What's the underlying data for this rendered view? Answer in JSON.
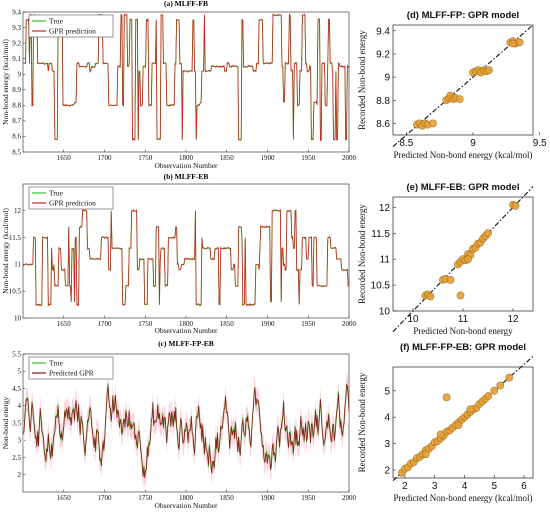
{
  "chart_data": [
    {
      "type": "line",
      "title": "(a) MLFF-FB",
      "xlabel": "Observation Number",
      "ylabel": "Non-bond energy (kcal/mol)",
      "xlim": [
        1600,
        2000
      ],
      "ylim": [
        8.5,
        9.4
      ],
      "xticks": [
        1650,
        1700,
        1750,
        1800,
        1850,
        1900,
        1950,
        2000
      ],
      "yticks": [
        8.5,
        8.6,
        8.7,
        8.8,
        8.9,
        9.0,
        9.1,
        9.2,
        9.3,
        9.4
      ],
      "legend": "top-left",
      "series": [
        {
          "name": "True",
          "color": "#2ecc2e"
        },
        {
          "name": "GPR prediction",
          "color": "#cc2020"
        }
      ],
      "levels": [
        8.58,
        8.8,
        8.82,
        9.02,
        9.05,
        9.07,
        9.35,
        9.38
      ]
    },
    {
      "type": "line",
      "title": "(b) MLFF-EB",
      "xlabel": "Observation Number",
      "ylabel": "Non-bond energy (kcal/mol)",
      "xlim": [
        1600,
        2000
      ],
      "ylim": [
        10,
        12.5
      ],
      "xticks": [
        1650,
        1700,
        1750,
        1800,
        1850,
        1900,
        1950,
        2000
      ],
      "yticks": [
        10,
        10.5,
        11,
        11.5,
        12
      ],
      "legend": "top-left",
      "series": [
        {
          "name": "True",
          "color": "#2ecc2e"
        },
        {
          "name": "GPR prediction",
          "color": "#cc2020"
        }
      ],
      "levels": [
        10.25,
        10.3,
        10.6,
        10.9,
        11.0,
        11.1,
        11.3,
        11.5,
        11.7,
        12.0
      ]
    },
    {
      "type": "line",
      "title": "(c) MLFF-FP-EB",
      "xlabel": "Observation Number",
      "ylabel": "Non-bond energy",
      "xlim": [
        1600,
        2000
      ],
      "ylim": [
        1.5,
        5.5
      ],
      "xticks": [
        1650,
        1700,
        1750,
        1800,
        1850,
        1900,
        1950,
        2000
      ],
      "yticks": [
        2,
        2.5,
        3,
        3.5,
        4,
        4.5,
        5,
        5.5
      ],
      "legend": "top-left",
      "series": [
        {
          "name": "True",
          "color": "#2ecc2e"
        },
        {
          "name": "Predicted GPR",
          "color": "#8b1a1a"
        }
      ]
    },
    {
      "type": "scatter",
      "title": "(d)  MLFF-FP: GPR model",
      "xlabel": "Predicted Non-bond energy (kcal/mol)",
      "ylabel": "Recorded Non-bond energy",
      "xlim": [
        8.4,
        9.45
      ],
      "ylim": [
        8.5,
        9.45
      ],
      "xticks": [
        8.5,
        9,
        9.5
      ],
      "yticks": [
        8.6,
        8.8,
        9,
        9.2,
        9.4
      ],
      "points": [
        [
          8.58,
          8.59
        ],
        [
          8.6,
          8.6
        ],
        [
          8.62,
          8.58
        ],
        [
          8.64,
          8.6
        ],
        [
          8.66,
          8.59
        ],
        [
          8.7,
          8.6
        ],
        [
          8.8,
          8.8
        ],
        [
          8.82,
          8.82
        ],
        [
          8.83,
          8.84
        ],
        [
          8.85,
          8.81
        ],
        [
          8.87,
          8.82
        ],
        [
          8.9,
          8.81
        ],
        [
          9.0,
          9.04
        ],
        [
          9.02,
          9.05
        ],
        [
          9.04,
          9.06
        ],
        [
          9.06,
          9.04
        ],
        [
          9.08,
          9.06
        ],
        [
          9.1,
          9.05
        ],
        [
          9.12,
          9.06
        ],
        [
          9.28,
          9.3
        ],
        [
          9.3,
          9.31
        ],
        [
          9.32,
          9.29
        ],
        [
          9.35,
          9.3
        ],
        [
          9.3,
          9.29
        ]
      ]
    },
    {
      "type": "scatter",
      "title": "(e) MLFF-EB: GPR model",
      "xlabel": "Predicted Non-bond energy",
      "ylabel": "Recorded Non-bond energy",
      "xlim": [
        9.6,
        12.4
      ],
      "ylim": [
        10,
        12.2
      ],
      "xticks": [
        10,
        11,
        12
      ],
      "yticks": [
        10,
        10.5,
        11,
        11.5,
        12
      ],
      "points": [
        [
          10.25,
          10.3
        ],
        [
          10.3,
          10.32
        ],
        [
          10.35,
          10.28
        ],
        [
          10.6,
          10.6
        ],
        [
          10.65,
          10.62
        ],
        [
          10.75,
          10.6
        ],
        [
          10.9,
          10.9
        ],
        [
          10.95,
          10.95
        ],
        [
          11.0,
          11.0
        ],
        [
          11.05,
          10.98
        ],
        [
          11.1,
          11.1
        ],
        [
          11.15,
          11.08
        ],
        [
          11.2,
          11.2
        ],
        [
          11.25,
          11.22
        ],
        [
          11.3,
          11.3
        ],
        [
          11.35,
          11.32
        ],
        [
          11.4,
          11.4
        ],
        [
          11.45,
          11.45
        ],
        [
          11.5,
          11.5
        ],
        [
          11.1,
          11.0
        ],
        [
          10.95,
          10.3
        ],
        [
          12.0,
          12.05
        ],
        [
          12.05,
          12.03
        ]
      ]
    },
    {
      "type": "scatter",
      "title": "(f)  MLFF-FP-EB: GPR model",
      "xlabel": "Predicted Non-bond energy (kcal/mol)",
      "ylabel": "Recorded Non-bond energy",
      "xlim": [
        1.6,
        6.3
      ],
      "ylim": [
        1.7,
        5.9
      ],
      "xticks": [
        2,
        3,
        4,
        5,
        6
      ],
      "yticks": [
        2,
        3,
        4,
        5
      ],
      "points": [
        [
          1.9,
          1.9
        ],
        [
          2.0,
          2.05
        ],
        [
          2.1,
          2.1
        ],
        [
          2.2,
          2.25
        ],
        [
          2.3,
          2.3
        ],
        [
          2.4,
          2.45
        ],
        [
          2.5,
          2.5
        ],
        [
          2.6,
          2.6
        ],
        [
          2.7,
          2.75
        ],
        [
          2.8,
          2.8
        ],
        [
          2.9,
          2.9
        ],
        [
          3.0,
          3.05
        ],
        [
          3.1,
          3.1
        ],
        [
          3.2,
          3.2
        ],
        [
          3.3,
          3.3
        ],
        [
          3.4,
          3.45
        ],
        [
          3.5,
          3.5
        ],
        [
          3.6,
          3.6
        ],
        [
          3.7,
          3.7
        ],
        [
          3.8,
          3.8
        ],
        [
          3.9,
          3.9
        ],
        [
          4.0,
          4.0
        ],
        [
          4.1,
          4.1
        ],
        [
          4.2,
          4.2
        ],
        [
          4.3,
          4.3
        ],
        [
          4.4,
          4.35
        ],
        [
          4.5,
          4.5
        ],
        [
          4.6,
          4.6
        ],
        [
          4.7,
          4.7
        ],
        [
          4.8,
          4.8
        ],
        [
          5.0,
          5.0
        ],
        [
          5.2,
          5.2
        ],
        [
          5.5,
          5.5
        ],
        [
          3.4,
          4.75
        ],
        [
          2.7,
          2.6
        ],
        [
          3.2,
          3.35
        ],
        [
          3.8,
          3.7
        ],
        [
          4.2,
          4.3
        ]
      ]
    }
  ]
}
